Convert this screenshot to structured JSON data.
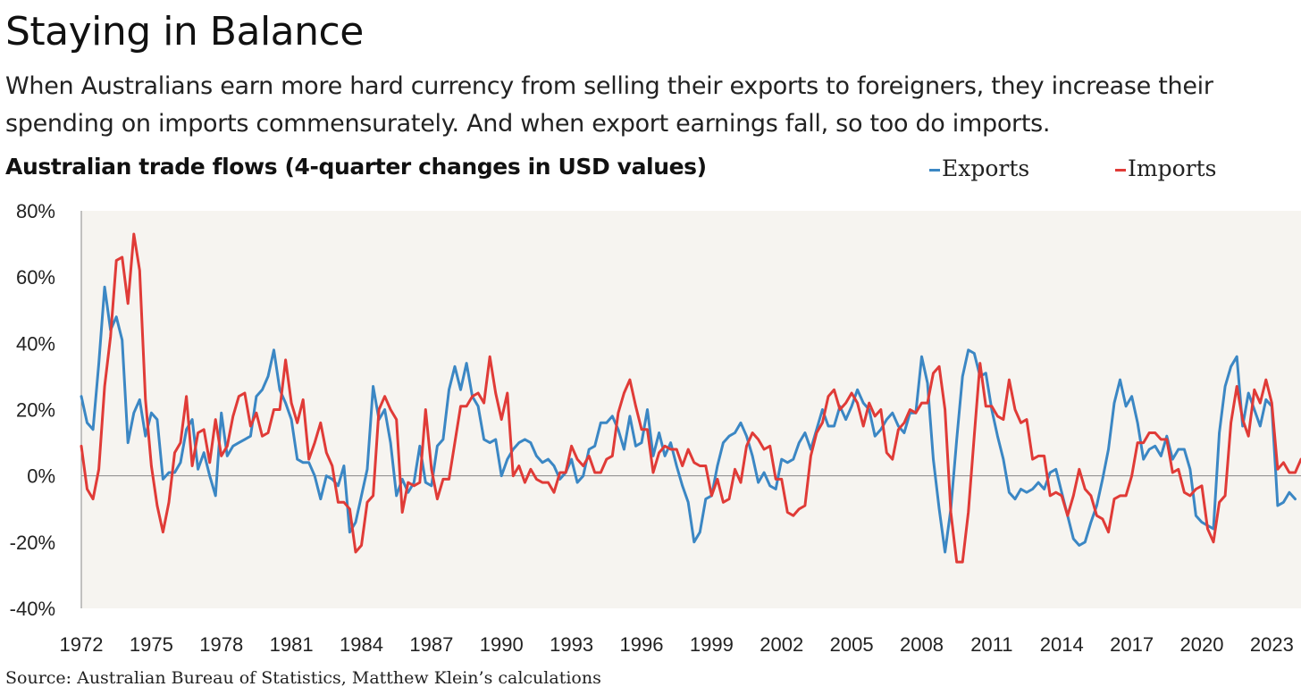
{
  "header": {
    "title": "Staying in Balance",
    "subtitle": "When Australians earn more hard currency from selling their exports to foreigners, they increase their spending on imports commensurately. And when export earnings fall, so too do imports."
  },
  "source": "Source: Australian Bureau of Statistics, Matthew Klein’s calculations",
  "chart_data": {
    "type": "line",
    "title": "Australian trade flows (4-quarter changes in USD values)",
    "xlabel": "",
    "ylabel": "",
    "ylim": [
      -40,
      80
    ],
    "yticks": [
      "80%",
      "60%",
      "40%",
      "20%",
      "0%",
      "-20%",
      "-40%"
    ],
    "yticks_values": [
      80,
      60,
      40,
      20,
      0,
      -20,
      -40
    ],
    "xticks": [
      "1972",
      "1975",
      "1978",
      "1981",
      "1984",
      "1987",
      "1990",
      "1993",
      "1996",
      "1999",
      "2002",
      "2005",
      "2008",
      "2011",
      "2014",
      "2017",
      "2020",
      "2023"
    ],
    "xlim": [
      1972,
      2024.25
    ],
    "x_start": 1972,
    "x_step": 0.25,
    "grid": false,
    "legend_position": "top-right",
    "colors": {
      "exports": "#3b87c4",
      "imports": "#e03b37",
      "plot_bg": "#f6f4f0",
      "axis": "#888888"
    },
    "series": [
      {
        "name": "Exports",
        "color": "#3b87c4",
        "values": [
          24,
          16,
          14,
          34,
          57,
          44,
          48,
          41,
          10,
          19,
          23,
          12,
          19,
          17,
          -1,
          1,
          1,
          4,
          14,
          17,
          2,
          7,
          0,
          -6,
          19,
          6,
          9,
          10,
          11,
          12,
          24,
          26,
          30,
          38,
          26,
          22,
          17,
          5,
          4,
          4,
          0,
          -7,
          0,
          -1,
          -3,
          3,
          -17,
          -14,
          -6,
          2,
          27,
          17,
          20,
          10,
          -6,
          -1,
          -5,
          -2,
          9,
          -2,
          -3,
          9,
          11,
          26,
          33,
          26,
          34,
          24,
          21,
          11,
          10,
          11,
          0,
          5,
          8,
          10,
          11,
          10,
          6,
          4,
          5,
          3,
          -1,
          1,
          5,
          -2,
          0,
          8,
          9,
          16,
          16,
          18,
          14,
          8,
          18,
          9,
          10,
          20,
          6,
          13,
          6,
          10,
          3,
          -3,
          -8,
          -20,
          -17,
          -7,
          -6,
          3,
          10,
          12,
          13,
          16,
          12,
          6,
          -2,
          1,
          -3,
          -4,
          5,
          4,
          5,
          10,
          13,
          8,
          14,
          20,
          15,
          15,
          21,
          17,
          21,
          26,
          22,
          20,
          12,
          14,
          17,
          19,
          15,
          13,
          19,
          19,
          36,
          28,
          5,
          -10,
          -23,
          -10,
          11,
          30,
          38,
          37,
          30,
          31,
          20,
          12,
          5,
          -5,
          -7,
          -4,
          -5,
          -4,
          -2,
          -4,
          1,
          2,
          -5,
          -12,
          -19,
          -21,
          -20,
          -14,
          -9,
          -1,
          8,
          22,
          29,
          21,
          24,
          16,
          5,
          8,
          9,
          6,
          12,
          5,
          8,
          8,
          2,
          -12,
          -14,
          -15,
          -16,
          13,
          27,
          33,
          36,
          15,
          25,
          20,
          15,
          23,
          21,
          -9,
          -8,
          -5,
          -7
        ]
      },
      {
        "name": "Imports",
        "color": "#e03b37",
        "values": [
          9,
          -4,
          -7,
          2,
          27,
          42,
          65,
          66,
          52,
          73,
          62,
          23,
          3,
          -9,
          -17,
          -8,
          7,
          10,
          24,
          3,
          13,
          14,
          4,
          17,
          6,
          9,
          18,
          24,
          25,
          15,
          19,
          12,
          13,
          20,
          20,
          35,
          22,
          16,
          23,
          5,
          10,
          16,
          7,
          3,
          -8,
          -8,
          -10,
          -23,
          -21,
          -8,
          -6,
          20,
          24,
          20,
          17,
          -11,
          -2,
          -3,
          -2,
          20,
          2,
          -7,
          -1,
          -1,
          10,
          21,
          21,
          24,
          25,
          22,
          36,
          25,
          17,
          25,
          0,
          3,
          -2,
          2,
          -1,
          -2,
          -2,
          -5,
          1,
          1,
          9,
          5,
          3,
          6,
          1,
          1,
          5,
          6,
          19,
          25,
          29,
          21,
          14,
          14,
          1,
          7,
          9,
          8,
          8,
          3,
          8,
          4,
          3,
          3,
          -6,
          -1,
          -8,
          -7,
          2,
          -2,
          9,
          13,
          11,
          8,
          9,
          -1,
          -1,
          -11,
          -12,
          -10,
          -9,
          6,
          13,
          16,
          24,
          26,
          20,
          22,
          25,
          22,
          15,
          22,
          18,
          20,
          7,
          5,
          14,
          16,
          20,
          19,
          22,
          22,
          31,
          33,
          20,
          -11,
          -26,
          -26,
          -11,
          12,
          34,
          21,
          21,
          18,
          17,
          29,
          20,
          16,
          17,
          5,
          6,
          6,
          -6,
          -5,
          -6,
          -12,
          -6,
          2,
          -4,
          -6,
          -12,
          -13,
          -17,
          -7,
          -6,
          -6,
          0,
          10,
          10,
          13,
          13,
          11,
          11,
          1,
          2,
          -5,
          -6,
          -4,
          -3,
          -16,
          -20,
          -8,
          -6,
          16,
          27,
          17,
          12,
          26,
          22,
          29,
          22,
          2,
          4,
          1,
          1,
          5
        ]
      }
    ]
  }
}
